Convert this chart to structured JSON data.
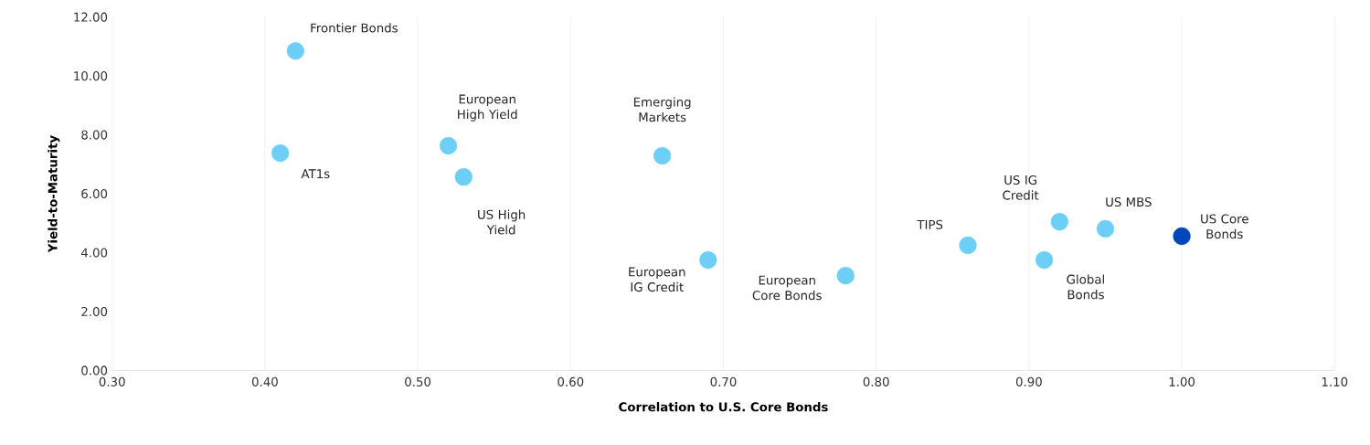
{
  "chart_data": {
    "type": "scatter",
    "xlabel": "Correlation to U.S. Core Bonds",
    "ylabel": "Yield-to-Maturity",
    "x": [
      0.42,
      0.41,
      0.52,
      0.53,
      0.66,
      0.69,
      0.78,
      0.86,
      0.92,
      0.91,
      0.95,
      1.0
    ],
    "values": [
      10.85,
      7.38,
      7.63,
      6.57,
      7.29,
      3.75,
      3.22,
      4.25,
      5.05,
      3.75,
      4.81,
      4.56
    ],
    "colors": [
      "#6dcff6",
      "#6dcff6",
      "#6dcff6",
      "#6dcff6",
      "#6dcff6",
      "#6dcff6",
      "#6dcff6",
      "#6dcff6",
      "#6dcff6",
      "#6dcff6",
      "#6dcff6",
      "#0047bb"
    ],
    "xlim": [
      0.3,
      1.1
    ],
    "ylim": [
      0,
      12
    ],
    "xticks": [
      {
        "value": 0.3,
        "label": "0.30"
      },
      {
        "value": 0.4,
        "label": "0.40"
      },
      {
        "value": 0.5,
        "label": "0.50"
      },
      {
        "value": 0.6,
        "label": "0.60"
      },
      {
        "value": 0.7,
        "label": "0.70"
      },
      {
        "value": 0.8,
        "label": "0.80"
      },
      {
        "value": 0.9,
        "label": "0.90"
      },
      {
        "value": 1.0,
        "label": "1.00"
      },
      {
        "value": 1.1,
        "label": "1.10"
      }
    ],
    "yticks": [
      {
        "value": 0,
        "label": "0.00"
      },
      {
        "value": 2,
        "label": "2.00"
      },
      {
        "value": 4,
        "label": "4.00"
      },
      {
        "value": 6,
        "label": "6.00"
      },
      {
        "value": 8,
        "label": "8.00"
      },
      {
        "value": 10,
        "label": "10.00"
      },
      {
        "value": 12,
        "label": "12.00"
      }
    ],
    "grid": "x",
    "annotations": [
      {
        "text": "Frontier Bonds",
        "x": 0.42,
        "y": 10.85
      },
      {
        "text": "AT1s",
        "x": 0.41,
        "y": 7.38
      },
      {
        "text": "European High Yield",
        "x": 0.52,
        "y": 7.63
      },
      {
        "text": "US High Yield",
        "x": 0.53,
        "y": 6.57
      },
      {
        "text": "Emerging Markets",
        "x": 0.66,
        "y": 7.29
      },
      {
        "text": "European IG Credit",
        "x": 0.69,
        "y": 3.75
      },
      {
        "text": "European Core Bonds",
        "x": 0.78,
        "y": 3.22
      },
      {
        "text": "TIPS",
        "x": 0.86,
        "y": 4.25
      },
      {
        "text": "US IG Credit",
        "x": 0.92,
        "y": 5.05
      },
      {
        "text": "Global Bonds",
        "x": 0.91,
        "y": 3.75
      },
      {
        "text": "US MBS",
        "x": 0.95,
        "y": 4.81
      },
      {
        "text": "US Core Bonds",
        "x": 1.0,
        "y": 4.56
      }
    ]
  }
}
